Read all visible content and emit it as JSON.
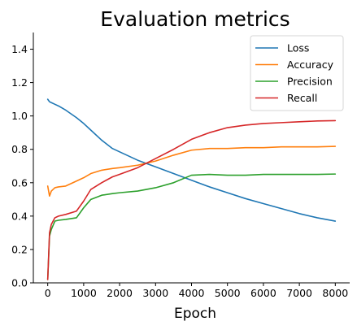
{
  "chart_data": {
    "type": "line",
    "title": "Evaluation metrics",
    "xlabel": "Epoch",
    "ylabel": "",
    "xlim": [
      -400,
      8400
    ],
    "ylim": [
      0.0,
      1.5
    ],
    "xticks": [
      0,
      1000,
      2000,
      3000,
      4000,
      5000,
      6000,
      7000,
      8000
    ],
    "yticks": [
      0.0,
      0.2,
      0.4,
      0.6,
      0.8,
      1.0,
      1.2,
      1.4
    ],
    "xtick_labels": [
      "0",
      "1000",
      "2000",
      "3000",
      "4000",
      "5000",
      "6000",
      "7000",
      "8000"
    ],
    "ytick_labels": [
      "0.0",
      "0.2",
      "0.4",
      "0.6",
      "0.8",
      "1.0",
      "1.2",
      "1.4"
    ],
    "grid": false,
    "legend_position": "top-right",
    "x": [
      0,
      50,
      100,
      200,
      300,
      500,
      800,
      1000,
      1200,
      1500,
      1800,
      2000,
      2500,
      3000,
      3500,
      4000,
      4500,
      5000,
      5500,
      6000,
      6500,
      7000,
      7500,
      8000
    ],
    "series": [
      {
        "name": "Loss",
        "color": "#1f77b4",
        "values": [
          1.1,
          1.085,
          1.08,
          1.07,
          1.06,
          1.035,
          0.99,
          0.955,
          0.915,
          0.855,
          0.805,
          0.785,
          0.735,
          0.695,
          0.655,
          0.615,
          0.575,
          0.54,
          0.505,
          0.475,
          0.445,
          0.415,
          0.39,
          0.37
        ]
      },
      {
        "name": "Accuracy",
        "color": "#ff7f0e",
        "values": [
          0.58,
          0.52,
          0.55,
          0.57,
          0.575,
          0.58,
          0.61,
          0.63,
          0.655,
          0.675,
          0.685,
          0.69,
          0.705,
          0.73,
          0.765,
          0.795,
          0.805,
          0.805,
          0.81,
          0.81,
          0.815,
          0.815,
          0.815,
          0.818
        ]
      },
      {
        "name": "Precision",
        "color": "#2ca02c",
        "values": [
          0.02,
          0.28,
          0.32,
          0.37,
          0.375,
          0.38,
          0.39,
          0.45,
          0.5,
          0.525,
          0.535,
          0.54,
          0.55,
          0.57,
          0.6,
          0.645,
          0.65,
          0.645,
          0.645,
          0.65,
          0.65,
          0.65,
          0.65,
          0.652
        ]
      },
      {
        "name": "Recall",
        "color": "#d62728",
        "values": [
          0.02,
          0.3,
          0.35,
          0.39,
          0.4,
          0.41,
          0.43,
          0.49,
          0.56,
          0.6,
          0.635,
          0.65,
          0.69,
          0.745,
          0.8,
          0.86,
          0.9,
          0.93,
          0.945,
          0.955,
          0.96,
          0.965,
          0.97,
          0.972
        ]
      }
    ]
  }
}
